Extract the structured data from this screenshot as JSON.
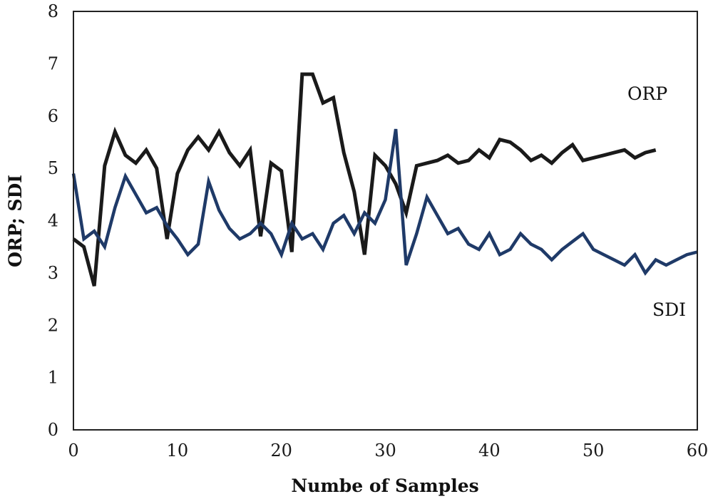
{
  "chart_data": {
    "type": "line",
    "title": "",
    "xlabel": "Numbe of Samples",
    "ylabel": "ORP; SDI",
    "xlim": [
      0,
      60
    ],
    "ylim": [
      0,
      8
    ],
    "xticks": [
      0,
      10,
      20,
      30,
      40,
      50,
      60
    ],
    "yticks": [
      0,
      1,
      2,
      3,
      4,
      5,
      6,
      7,
      8
    ],
    "grid": false,
    "legend": "inline labels",
    "series": [
      {
        "name": "ORP",
        "color": "#1a1a1a",
        "x": [
          0,
          1,
          2,
          3,
          4,
          5,
          6,
          7,
          8,
          9,
          10,
          11,
          12,
          13,
          14,
          15,
          16,
          17,
          18,
          19,
          20,
          21,
          22,
          23,
          24,
          25,
          26,
          27,
          28,
          29,
          30,
          31,
          32,
          33,
          34,
          35,
          36,
          37,
          38,
          39,
          40,
          41,
          42,
          43,
          44,
          45,
          46,
          47,
          48,
          49,
          50,
          51,
          52,
          53,
          54,
          55,
          56
        ],
        "y": [
          3.65,
          3.5,
          2.75,
          5.05,
          5.7,
          5.25,
          5.1,
          5.35,
          5.0,
          3.65,
          4.9,
          5.35,
          5.6,
          5.35,
          5.7,
          5.3,
          5.05,
          5.35,
          3.7,
          5.1,
          4.95,
          3.4,
          6.8,
          6.8,
          6.25,
          6.35,
          5.3,
          4.55,
          3.35,
          5.25,
          5.05,
          4.7,
          4.15,
          5.05,
          5.1,
          5.15,
          5.25,
          5.1,
          5.15,
          5.35,
          5.2,
          5.55,
          5.5,
          5.35,
          5.15,
          5.25,
          5.1,
          5.3,
          5.45,
          5.15,
          5.2,
          5.25,
          5.3,
          5.35,
          5.2,
          5.3,
          5.35
        ]
      },
      {
        "name": "SDI",
        "color": "#1f3a68",
        "x": [
          0,
          1,
          2,
          3,
          4,
          5,
          6,
          7,
          8,
          9,
          10,
          11,
          12,
          13,
          14,
          15,
          16,
          17,
          18,
          19,
          20,
          21,
          22,
          23,
          24,
          25,
          26,
          27,
          28,
          29,
          30,
          31,
          32,
          33,
          34,
          35,
          36,
          37,
          38,
          39,
          40,
          41,
          42,
          43,
          44,
          45,
          46,
          47,
          48,
          49,
          50,
          51,
          52,
          53,
          54,
          55,
          56,
          57,
          58,
          59,
          60
        ],
        "y": [
          4.9,
          3.65,
          3.8,
          3.5,
          4.25,
          4.85,
          4.5,
          4.15,
          4.25,
          3.9,
          3.65,
          3.35,
          3.55,
          4.75,
          4.2,
          3.85,
          3.65,
          3.75,
          3.95,
          3.75,
          3.35,
          3.95,
          3.65,
          3.75,
          3.45,
          3.95,
          4.1,
          3.75,
          4.15,
          3.95,
          4.4,
          5.75,
          3.15,
          3.75,
          4.45,
          4.1,
          3.75,
          3.85,
          3.55,
          3.45,
          3.75,
          3.35,
          3.45,
          3.75,
          3.55,
          3.45,
          3.25,
          3.45,
          3.6,
          3.75,
          3.45,
          3.35,
          3.25,
          3.15,
          3.35,
          3.0,
          3.25,
          3.15,
          3.25,
          3.35,
          3.4
        ]
      }
    ]
  }
}
